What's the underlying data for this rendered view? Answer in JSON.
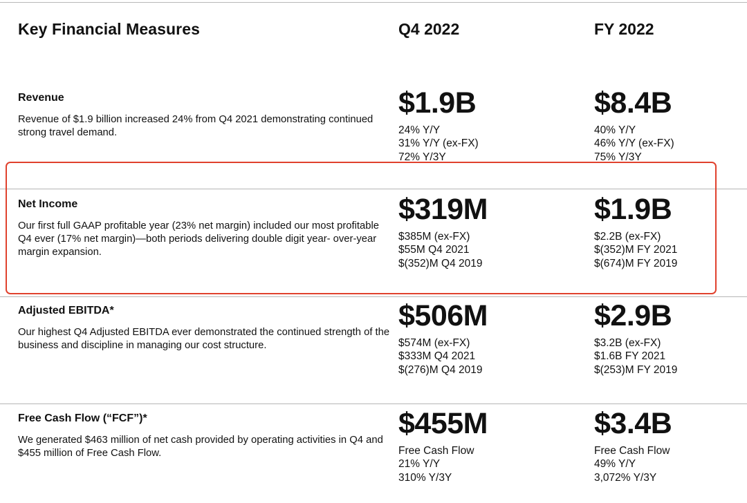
{
  "header": {
    "title": "Key Financial Measures",
    "col_q4": "Q4 2022",
    "col_fy": "FY 2022"
  },
  "rows": [
    {
      "title": "Revenue",
      "description": "Revenue of $1.9 billion increased 24% from Q4 2021 demonstrating continued strong travel demand.",
      "q4": {
        "value": "$1.9B",
        "details": [
          "24% Y/Y",
          "31% Y/Y (ex-FX)",
          "72% Y/3Y"
        ]
      },
      "fy": {
        "value": "$8.4B",
        "details": [
          "40% Y/Y",
          "46% Y/Y (ex-FX)",
          "75% Y/3Y"
        ]
      }
    },
    {
      "title": "Net Income",
      "description": "Our first full GAAP profitable year (23% net margin) included our most profitable Q4 ever (17% net margin)—both periods delivering double digit year- over-year margin expansion.",
      "q4": {
        "value": "$319M",
        "details": [
          "$385M (ex-FX)",
          "$55M Q4 2021",
          "$(352)M Q4 2019"
        ]
      },
      "fy": {
        "value": "$1.9B",
        "details": [
          "$2.2B (ex-FX)",
          "$(352)M FY 2021",
          "$(674)M FY 2019"
        ]
      }
    },
    {
      "title": "Adjusted EBITDA*",
      "description": "Our highest Q4 Adjusted EBITDA ever demonstrated the continued strength of the business and discipline in managing our cost structure.",
      "q4": {
        "value": "$506M",
        "details": [
          "$574M (ex-FX)",
          "$333M Q4 2021",
          "$(276)M Q4 2019"
        ]
      },
      "fy": {
        "value": "$2.9B",
        "details": [
          "$3.2B (ex-FX)",
          "$1.6B FY 2021",
          "$(253)M FY 2019"
        ]
      }
    },
    {
      "title": "Free Cash Flow (“FCF”)*",
      "description": "We generated $463 million of net cash provided by operating activities in Q4 and $455 million of Free Cash Flow.",
      "q4": {
        "value": "$455M",
        "details": [
          "Free Cash Flow",
          "21% Y/Y",
          "310% Y/3Y"
        ]
      },
      "fy": {
        "value": "$3.4B",
        "details": [
          "Free Cash Flow",
          "49% Y/Y",
          "3,072% Y/3Y"
        ]
      }
    }
  ],
  "colors": {
    "highlight_border": "#e0412d",
    "divider": "#b5b5b5"
  }
}
